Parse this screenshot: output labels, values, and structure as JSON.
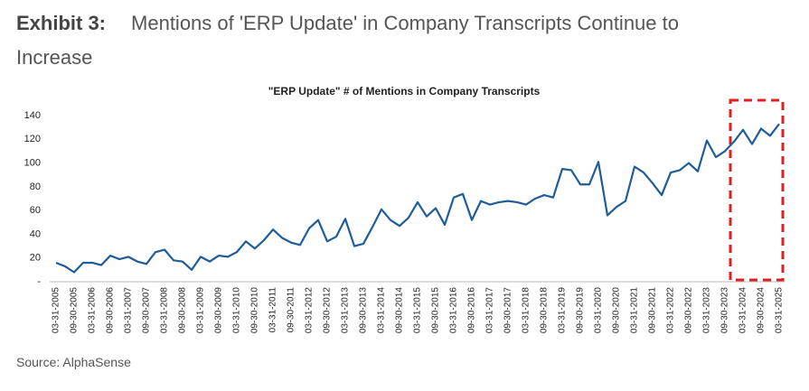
{
  "exhibit": "Exhibit 3:",
  "title": "Mentions of 'ERP Update' in Company Transcripts Continue to Increase",
  "source": "Source: AlphaSense",
  "chart_data": {
    "type": "line",
    "title": "\"ERP Update\" # of Mentions in Company Transcripts",
    "categories": [
      "03-31-2005",
      null,
      "09-30-2005",
      null,
      "03-31-2006",
      null,
      "09-30-2006",
      null,
      "03-31-2007",
      null,
      "09-30-2007",
      null,
      "03-31-2008",
      null,
      "09-30-2008",
      null,
      "03-31-2009",
      null,
      "09-30-2009",
      null,
      "03-31-2010",
      null,
      "09-30-2010",
      null,
      "03-31-2011",
      null,
      "09-30-2011",
      null,
      "03-31-2012",
      null,
      "09-30-2012",
      null,
      "03-31-2013",
      null,
      "09-30-2013",
      null,
      "03-31-2014",
      null,
      "09-30-2014",
      null,
      "03-31-2015",
      null,
      "09-30-2015",
      null,
      "03-31-2016",
      null,
      "09-30-2016",
      null,
      "03-31-2017",
      null,
      "09-30-2017",
      null,
      "03-31-2018",
      null,
      "09-30-2018",
      null,
      "03-31-2019",
      null,
      "09-30-2019",
      null,
      "03-31-2020",
      null,
      "09-30-2020",
      null,
      "03-31-2021",
      null,
      "09-30-2021",
      null,
      "03-31-2022",
      null,
      "09-30-2022",
      null,
      "03-31-2023",
      null,
      "09-30-2023",
      null,
      "03-31-2024",
      null,
      "09-30-2024",
      null,
      "03-31-2025"
    ],
    "values": [
      16,
      13,
      8,
      16,
      16,
      14,
      22,
      19,
      21,
      17,
      15,
      25,
      27,
      18,
      17,
      10,
      21,
      17,
      22,
      21,
      25,
      34,
      28,
      35,
      44,
      37,
      33,
      31,
      45,
      52,
      34,
      38,
      53,
      30,
      32,
      46,
      61,
      52,
      47,
      54,
      67,
      55,
      62,
      48,
      71,
      74,
      52,
      68,
      65,
      67,
      68,
      67,
      65,
      70,
      73,
      71,
      95,
      94,
      82,
      82,
      101,
      56,
      63,
      68,
      97,
      92,
      83,
      73,
      92,
      94,
      100,
      93,
      119,
      105,
      110,
      118,
      128,
      116,
      129,
      123,
      133
    ],
    "color": "#1f5c99",
    "ylim": [
      0,
      140
    ],
    "yticks": [
      {
        "value": 0,
        "label": "-"
      },
      20,
      40,
      60,
      80,
      100,
      120,
      140
    ]
  }
}
